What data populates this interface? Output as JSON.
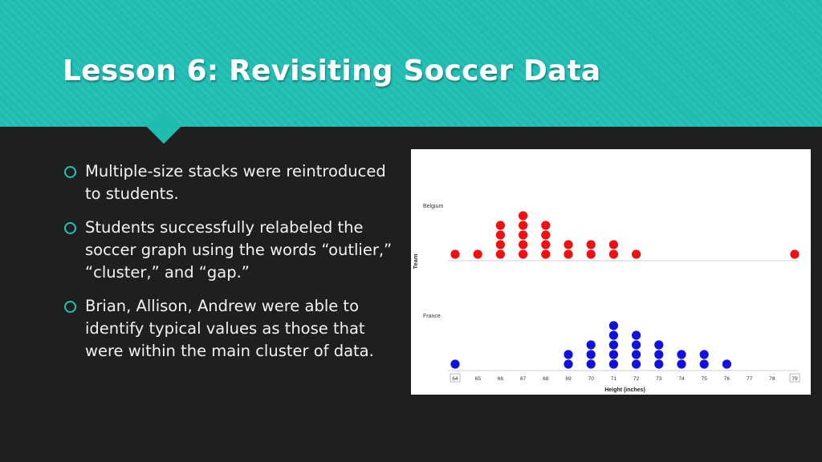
{
  "slide": {
    "title": "Lesson 6: Revisiting Soccer Data",
    "bullets": [
      "Multiple-size stacks were reintroduced to students.",
      "Students successfully relabeled the soccer graph using the words “outlier,” “cluster,” and “gap.”",
      "Brian, Allison, Andrew were able to identify typical values as those that were within the main cluster of data."
    ]
  },
  "colors": {
    "header": "#1fbcb2",
    "background": "#1f1f1f",
    "bullet_ring": "#22c1b5",
    "belgium_dots": "#ee1111",
    "france_dots": "#1111dd"
  },
  "chart_data": {
    "type": "scatter",
    "subtype": "stacked dot plot",
    "xlabel": "Height (inches)",
    "ylabel": "Team",
    "xlim": [
      64,
      79
    ],
    "x_ticks": [
      "64",
      "65",
      "66",
      "67",
      "68",
      "69",
      "70",
      "71",
      "72",
      "73",
      "74",
      "75",
      "76",
      "77",
      "78",
      "79"
    ],
    "series": [
      {
        "name": "Belgium",
        "color": "#ee1111",
        "x": [
          64,
          65,
          66,
          67,
          68,
          69,
          70,
          71,
          72,
          79
        ],
        "counts": [
          1,
          1,
          4,
          5,
          4,
          2,
          2,
          2,
          1,
          1
        ]
      },
      {
        "name": "France",
        "color": "#1111dd",
        "x": [
          64,
          69,
          70,
          71,
          72,
          73,
          74,
          75,
          76
        ],
        "counts": [
          1,
          2,
          3,
          5,
          4,
          3,
          2,
          2,
          1
        ]
      }
    ]
  }
}
